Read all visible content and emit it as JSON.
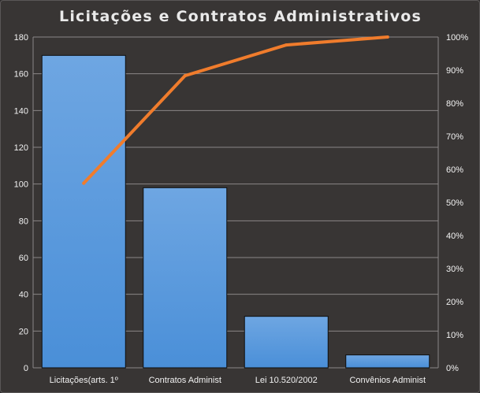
{
  "chart_data": {
    "type": "bar",
    "title": "Licitações e Contratos Administrativos",
    "categories": [
      "Licitações(arts. 1º",
      "Contratos Administ",
      "Lei 10.520/2002",
      "Convênios Administ"
    ],
    "series": [
      {
        "type": "bar",
        "axis": "left",
        "values": [
          170,
          98,
          28,
          7
        ]
      },
      {
        "type": "line",
        "axis": "right",
        "values": [
          55.8,
          88.3,
          97.6,
          100
        ]
      }
    ],
    "ylim": [
      0,
      180
    ],
    "yticks": [
      0,
      20,
      40,
      60,
      80,
      100,
      120,
      140,
      160,
      180
    ],
    "y2lim": [
      0,
      100
    ],
    "y2ticks": [
      "0%",
      "10%",
      "20%",
      "30%",
      "40%",
      "50%",
      "60%",
      "70%",
      "80%",
      "90%",
      "100%"
    ],
    "grid": true,
    "legend": "none",
    "colors": {
      "bar": "#4a8fd8",
      "bar_top": "#6ea6e2",
      "line": "#f07c2c",
      "grid": "#8a8787",
      "background": "#383534"
    }
  }
}
